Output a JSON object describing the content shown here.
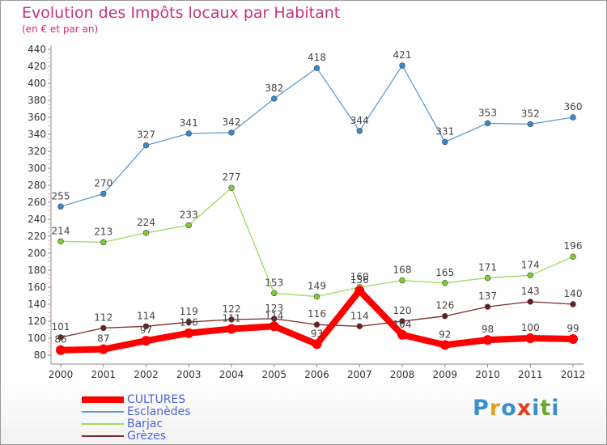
{
  "title": "Evolution des Impôts locaux par Habitant",
  "subtitle": "(en € et par an)",
  "logo_text": "Proxiti",
  "chart_data": {
    "type": "line",
    "title": "Evolution des Impôts locaux par Habitant",
    "subtitle": "(en € et par an)",
    "categories": [
      "2000",
      "2001",
      "2002",
      "2003",
      "2004",
      "2005",
      "2006",
      "2007",
      "2008",
      "2009",
      "2010",
      "2011",
      "2012"
    ],
    "y_ticks": [
      "80",
      "100",
      "120",
      "140",
      "160",
      "180",
      "200",
      "220",
      "240",
      "260",
      "280",
      "300",
      "320",
      "340",
      "360",
      "380",
      "400",
      "420",
      "440"
    ],
    "ylim": [
      80,
      440
    ],
    "grid": false,
    "legend_position": "bottom-left",
    "series": [
      {
        "name": "CULTURES",
        "color": "#ff0000",
        "values": [
          86,
          87,
          97,
          106,
          111,
          114,
          93,
          156,
          104,
          92,
          98,
          100,
          99
        ]
      },
      {
        "name": "Esclanèdes",
        "color": "#5b9bd5",
        "values": [
          255,
          270,
          327,
          341,
          342,
          382,
          418,
          344,
          421,
          331,
          353,
          352,
          360
        ]
      },
      {
        "name": "Barjac",
        "color": "#99dd55",
        "values": [
          214,
          213,
          224,
          233,
          277,
          153,
          149,
          160,
          168,
          165,
          171,
          174,
          196
        ]
      },
      {
        "name": "Grèzes",
        "color": "#7a2c2c",
        "values": [
          101,
          112,
          114,
          119,
          122,
          123,
          116,
          114,
          120,
          126,
          137,
          143,
          140
        ]
      }
    ]
  }
}
